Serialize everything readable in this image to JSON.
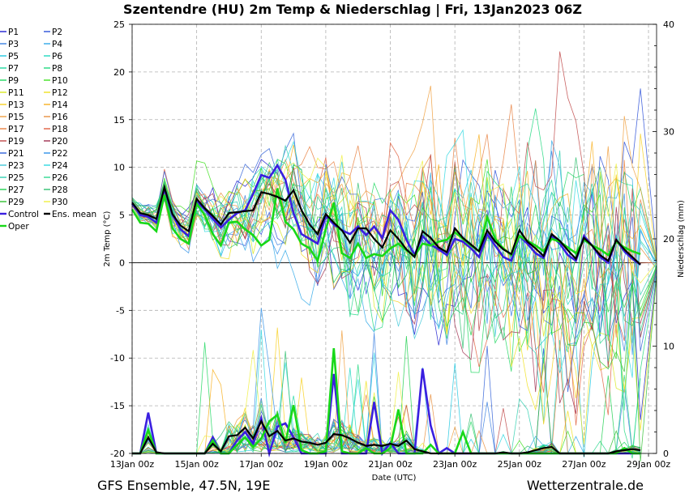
{
  "chart_data": {
    "type": "line",
    "title": "Szentendre  (HU)  2m Temp & Niederschlag | Fri, 13Jan2023 06Z",
    "ylabel": "2m Temp (°C)",
    "y2label": "Niederschlag (mm)",
    "xlabel": "Date (UTC)",
    "ylim": [
      -20,
      25
    ],
    "y2lim": [
      0,
      40
    ],
    "xlim_days": [
      0,
      16.25
    ],
    "yticks": [
      "25",
      "20",
      "15",
      "10",
      "5",
      "0",
      "-5",
      "-10",
      "-15",
      "-20"
    ],
    "y2ticks": [
      "40",
      "30",
      "20",
      "10",
      "0"
    ],
    "xticks": [
      "13Jan 00z",
      "15Jan 00z",
      "17Jan 00z",
      "19Jan 00z",
      "21Jan 00z",
      "23Jan 00z",
      "25Jan 00z",
      "27Jan 00z",
      "29Jan 00z"
    ],
    "footer_left": "GFS Ensemble, 47.5N, 19E",
    "footer_right": "Wetterzentrale.de",
    "legend": [
      {
        "name": "P1",
        "color": "#1f1fd0"
      },
      {
        "name": "P2",
        "color": "#2a4fd8"
      },
      {
        "name": "P3",
        "color": "#3a7fe0"
      },
      {
        "name": "P4",
        "color": "#30a8e8"
      },
      {
        "name": "P5",
        "color": "#20c8e0"
      },
      {
        "name": "P6",
        "color": "#20d8c0"
      },
      {
        "name": "P7",
        "color": "#20d8a0"
      },
      {
        "name": "P8",
        "color": "#20d880"
      },
      {
        "name": "P9",
        "color": "#20d860"
      },
      {
        "name": "P10",
        "color": "#40e020"
      },
      {
        "name": "P11",
        "color": "#d8e820"
      },
      {
        "name": "P12",
        "color": "#f0e020"
      },
      {
        "name": "P13",
        "color": "#f8d020"
      },
      {
        "name": "P14",
        "color": "#f8b020"
      },
      {
        "name": "P15",
        "color": "#f0a040"
      },
      {
        "name": "P16",
        "color": "#e89040"
      },
      {
        "name": "P17",
        "color": "#e88040"
      },
      {
        "name": "P18",
        "color": "#e06040"
      },
      {
        "name": "P19",
        "color": "#c04848"
      },
      {
        "name": "P20",
        "color": "#a03050"
      },
      {
        "name": "P21",
        "color": "#3060d8"
      },
      {
        "name": "P22",
        "color": "#3090e8"
      },
      {
        "name": "P23",
        "color": "#40c8d8"
      },
      {
        "name": "P24",
        "color": "#30d8e0"
      },
      {
        "name": "P25",
        "color": "#30d0b0"
      },
      {
        "name": "P26",
        "color": "#30d890"
      },
      {
        "name": "P27",
        "color": "#20d050"
      },
      {
        "name": "P28",
        "color": "#30c070"
      },
      {
        "name": "P29",
        "color": "#30c030"
      },
      {
        "name": "P30",
        "color": "#f0f040"
      },
      {
        "name": "Control",
        "color": "#3a1fe0"
      },
      {
        "name": "Ens. mean",
        "color": "#000000"
      },
      {
        "name": "Oper",
        "color": "#18d818"
      }
    ],
    "series_main": [
      {
        "name": "Ens. mean",
        "color": "#000000",
        "step_h": 6,
        "values": [
          6.3,
          5.2,
          5.0,
          4.6,
          7.9,
          5.1,
          3.9,
          3.3,
          6.7,
          5.7,
          4.9,
          4.0,
          5.2,
          5.3,
          5.4,
          5.5,
          7.4,
          7.2,
          6.9,
          6.5,
          7.6,
          5.5,
          4.0,
          3.0,
          5.1,
          4.2,
          3.4,
          2.1,
          3.6,
          3.6,
          2.5,
          1.6,
          3.4,
          2.5,
          1.4,
          0.6,
          3.3,
          2.6,
          1.6,
          1.1,
          3.6,
          2.6,
          1.9,
          1.2,
          3.4,
          2.2,
          1.4,
          0.9,
          3.4,
          2.2,
          1.5,
          0.7,
          3.0,
          2.3,
          1.3,
          0.4,
          2.6,
          1.8,
          0.8,
          0.2,
          2.4,
          1.4,
          0.6,
          -0.2
        ]
      },
      {
        "name": "Control",
        "color": "#3a1fe0",
        "step_h": 6,
        "values": [
          6.2,
          5.0,
          4.8,
          4.2,
          7.7,
          5.0,
          3.5,
          2.8,
          6.4,
          5.6,
          4.6,
          3.7,
          4.5,
          5.2,
          5.5,
          7.2,
          9.2,
          8.9,
          10.2,
          8.7,
          5.2,
          3.0,
          2.5,
          2.0,
          4.9,
          4.0,
          3.4,
          3.0,
          3.8,
          2.9,
          3.8,
          2.6,
          5.5,
          4.5,
          2.4,
          0.8,
          2.8,
          1.9,
          1.4,
          0.8,
          2.5,
          2.2,
          1.5,
          0.6,
          3.0,
          1.8,
          0.6,
          0.2,
          2.8,
          2.0,
          1.0,
          0.5,
          2.8,
          2.0,
          0.8,
          0.2,
          2.8,
          1.8,
          0.6,
          0.0,
          2.4,
          1.2,
          0.4,
          -0.2
        ]
      },
      {
        "name": "Oper",
        "color": "#18d818",
        "step_h": 6,
        "values": [
          5.6,
          4.2,
          4.1,
          3.3,
          7.1,
          3.6,
          2.5,
          2.0,
          6.2,
          5.0,
          3.0,
          1.8,
          4.2,
          4.3,
          3.5,
          2.9,
          1.8,
          2.4,
          7.8,
          4.3,
          3.5,
          2.0,
          1.5,
          0.2,
          3.5,
          6.3,
          1.0,
          0.5,
          2.0,
          0.5,
          0.9,
          0.7,
          1.5,
          2.0,
          1.3,
          0.7,
          2.0,
          1.8,
          2.2,
          2.4,
          3.2,
          2.5,
          1.8,
          1.2,
          4.8,
          2.5,
          1.5,
          0.8,
          2.8,
          2.3,
          1.8,
          1.2,
          2.5,
          2.2,
          1.6,
          1.0,
          2.4,
          1.8,
          1.4,
          0.8,
          2.2,
          1.6,
          1.2,
          0.9
        ]
      }
    ],
    "precip_main": [
      {
        "name": "Ens. mean",
        "color": "#000000",
        "step_h": 6,
        "values": [
          0,
          0,
          1.5,
          0.1,
          0,
          0,
          0,
          0,
          0,
          0,
          0.9,
          0.2,
          1.6,
          1.7,
          2.4,
          1.4,
          3.0,
          1.6,
          2.1,
          1.2,
          1.4,
          1.1,
          1.0,
          0.8,
          1.0,
          1.8,
          1.7,
          1.4,
          1.0,
          0.7,
          0.8,
          0.7,
          0.9,
          0.7,
          1.2,
          0.4,
          0.2,
          0,
          0,
          0,
          0,
          0,
          0,
          0,
          0,
          0,
          0.1,
          0,
          0,
          0.1,
          0.3,
          0.5,
          0.6,
          0,
          0,
          0,
          0,
          0,
          0,
          0,
          0.2,
          0.3,
          0.4,
          0.3
        ]
      },
      {
        "name": "Control",
        "color": "#3a1fe0",
        "step_h": 6,
        "values": [
          0,
          0,
          3.8,
          0,
          0,
          0,
          0,
          0,
          0,
          0,
          1.5,
          0,
          0,
          1.2,
          2.0,
          0.9,
          3.3,
          0,
          2.5,
          2.8,
          1.5,
          0,
          0,
          0,
          0,
          7.4,
          0,
          0,
          0,
          0,
          4.8,
          0,
          1.0,
          0,
          0,
          0,
          7.9,
          2.6,
          0,
          0.5,
          0,
          0,
          0,
          0,
          0,
          0,
          0,
          0,
          0,
          0,
          0,
          0,
          0,
          0,
          0,
          0,
          0,
          0,
          0,
          0,
          0,
          0,
          0,
          0
        ]
      },
      {
        "name": "Oper",
        "color": "#18d818",
        "step_h": 6,
        "values": [
          0,
          0,
          2.2,
          0,
          0,
          0,
          0,
          0,
          0,
          0,
          1.2,
          0,
          0,
          0.8,
          1.5,
          0.6,
          1.4,
          3.0,
          3.6,
          1.0,
          4.5,
          0.3,
          0,
          0,
          0.2,
          9.8,
          0.2,
          0,
          0,
          0.5,
          0,
          0,
          0.5,
          4.1,
          0,
          0,
          0,
          0.8,
          0,
          0,
          0,
          2.0,
          0,
          0,
          0,
          0,
          0,
          0,
          0,
          0,
          0,
          0,
          0,
          0,
          0,
          0,
          0,
          0,
          0,
          0,
          0,
          0.5,
          0,
          0
        ]
      }
    ]
  }
}
